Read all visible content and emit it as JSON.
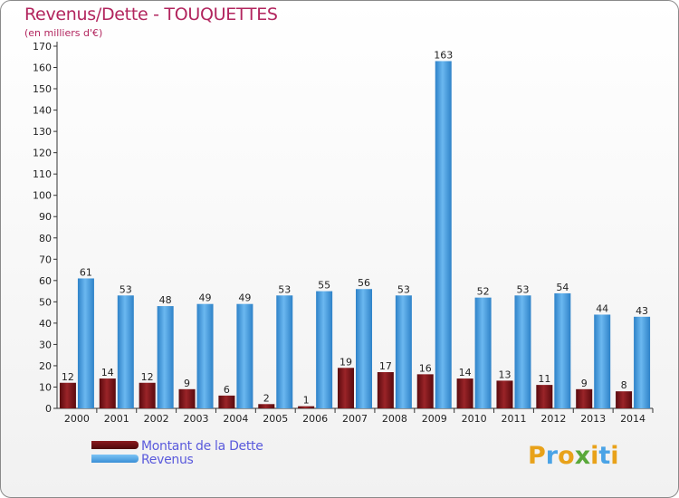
{
  "header": {
    "title": "Revenus/Dette - TOUQUETTES",
    "subtitle": "(en milliers d'€)"
  },
  "legend": {
    "items": [
      {
        "label": "Montant de la Dette",
        "color": "#6b0e12"
      },
      {
        "label": "Revenus",
        "color": "#4aa3e6"
      }
    ]
  },
  "logo": {
    "text": "Proxiti",
    "colors": [
      "#e8a21a",
      "#4aa3e6",
      "#e8a21a",
      "#5aa83a",
      "#e8a21a",
      "#4aa3e6",
      "#e8a21a"
    ]
  },
  "chart_data": {
    "type": "bar",
    "categories": [
      "2000",
      "2001",
      "2002",
      "2003",
      "2004",
      "2005",
      "2006",
      "2007",
      "2008",
      "2009",
      "2010",
      "2011",
      "2012",
      "2013",
      "2014"
    ],
    "series": [
      {
        "name": "Montant de la Dette",
        "color": "#7a1418",
        "values": [
          12,
          14,
          12,
          9,
          6,
          2,
          1,
          19,
          17,
          16,
          14,
          13,
          11,
          9,
          8
        ]
      },
      {
        "name": "Revenus",
        "color": "#4aa3e6",
        "values": [
          61,
          53,
          48,
          49,
          49,
          53,
          55,
          56,
          53,
          163,
          52,
          53,
          54,
          44,
          43
        ]
      }
    ],
    "ylim": [
      0,
      170
    ],
    "yticks": [
      0,
      10,
      20,
      30,
      40,
      50,
      60,
      70,
      80,
      90,
      100,
      110,
      120,
      130,
      140,
      150,
      160,
      170
    ],
    "xlabel": "",
    "ylabel": "",
    "grid": false,
    "legend_position": "bottom-left"
  }
}
